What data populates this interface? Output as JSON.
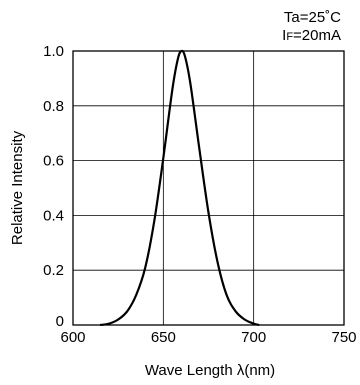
{
  "chart_data": {
    "type": "line",
    "title": "",
    "conditions": {
      "ta": "Ta=25˚C",
      "if_prefix": "I",
      "if_sub": "F",
      "if_value": "=20mA"
    },
    "xlabel": "Wave Length  λ(nm)",
    "ylabel": "Relative Intensity",
    "xlim": [
      600,
      750
    ],
    "ylim": [
      0,
      1.0
    ],
    "x_ticks": [
      600,
      650,
      700,
      750
    ],
    "x_tick_labels": [
      "600",
      "650",
      "700",
      "750"
    ],
    "y_ticks": [
      0,
      0.2,
      0.4,
      0.6,
      0.8,
      1.0
    ],
    "y_tick_labels": [
      "0",
      "0.2",
      "0.4",
      "0.6",
      "0.8",
      "1.0"
    ],
    "grid": true,
    "series": [
      {
        "color": "#000000",
        "x": [
          615,
          620,
          625,
          630,
          635,
          640,
          645,
          650,
          655,
          658,
          660,
          662,
          665,
          670,
          675,
          680,
          685,
          690,
          695,
          700,
          703
        ],
        "y": [
          0.0,
          0.005,
          0.02,
          0.05,
          0.11,
          0.21,
          0.38,
          0.61,
          0.86,
          0.97,
          1.0,
          0.98,
          0.88,
          0.64,
          0.41,
          0.23,
          0.11,
          0.05,
          0.02,
          0.005,
          0.0
        ]
      }
    ]
  }
}
